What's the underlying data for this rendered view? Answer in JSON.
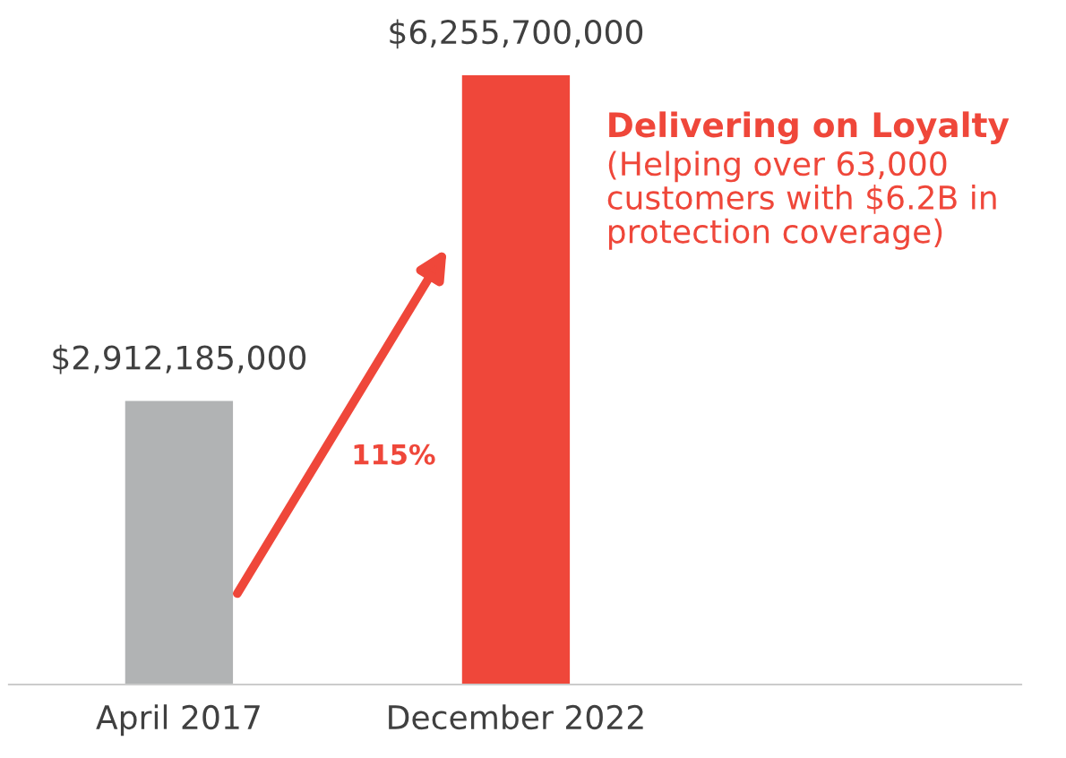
{
  "chart_data": {
    "type": "bar",
    "categories": [
      "April 2017",
      "December 2022"
    ],
    "values": [
      2912185000,
      6255700000
    ],
    "colors": [
      "#b1b3b4",
      "#ef473a"
    ],
    "value_labels": [
      "$2,912,185,000",
      "$6,255,700,000"
    ],
    "annotations": [
      "Delivering on Loyalty",
      "(Helping over 63,000\ncustomers with $6.2B in\nprotection coverage)",
      "115%"
    ],
    "grid": false,
    "legend": false
  }
}
